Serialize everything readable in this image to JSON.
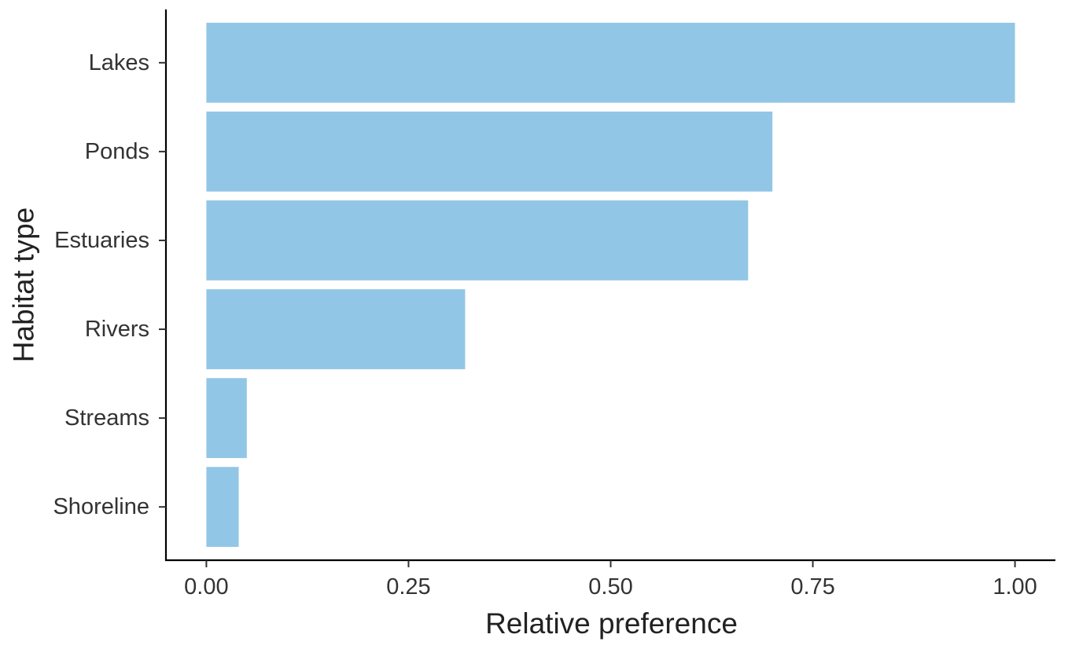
{
  "chart_data": {
    "type": "bar",
    "orientation": "horizontal",
    "categories": [
      "Lakes",
      "Ponds",
      "Estuaries",
      "Rivers",
      "Streams",
      "Shoreline"
    ],
    "values": [
      1.0,
      0.7,
      0.67,
      0.32,
      0.05,
      0.04
    ],
    "xlabel": "Relative preference",
    "ylabel": "Habitat type",
    "xlim": [
      0,
      1
    ],
    "xticks": [
      "0.00",
      "0.25",
      "0.50",
      "0.75",
      "1.00"
    ],
    "xtick_values": [
      0,
      0.25,
      0.5,
      0.75,
      1.0
    ],
    "bar_color": "#92C6E6",
    "grid": false,
    "legend": "none"
  }
}
